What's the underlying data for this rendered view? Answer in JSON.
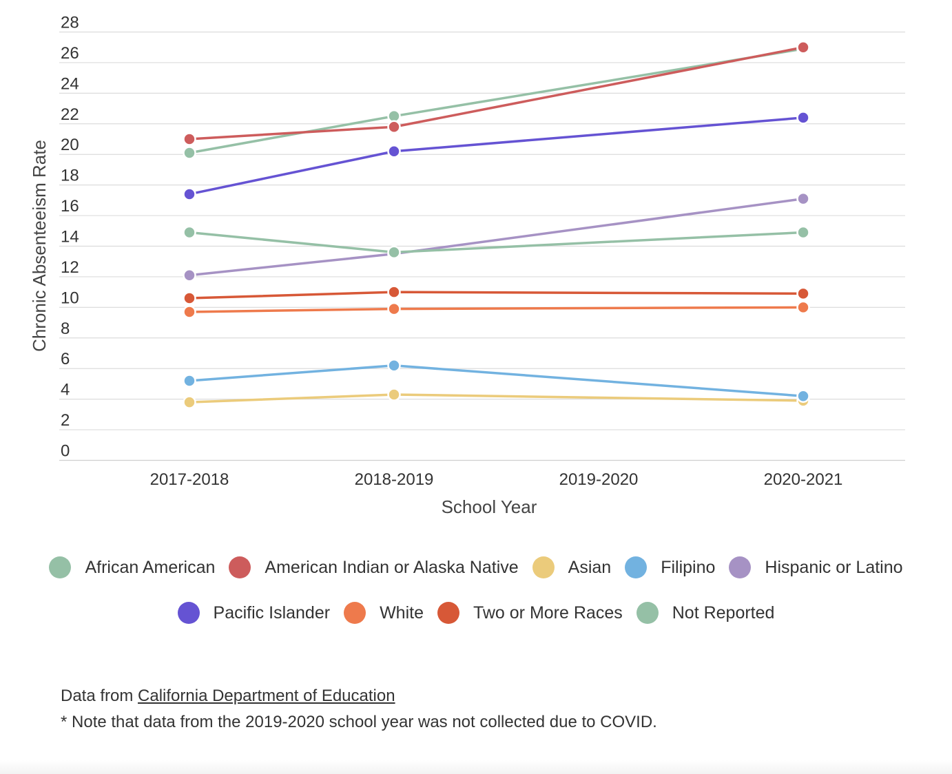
{
  "chart_data": {
    "type": "line",
    "title": "",
    "xlabel": "School Year",
    "ylabel": "Chronic Absenteeism Rate",
    "ylim": [
      0,
      28
    ],
    "yticks": [
      0,
      2,
      4,
      6,
      8,
      10,
      12,
      14,
      16,
      18,
      20,
      22,
      24,
      26,
      28
    ],
    "grid": true,
    "legend_position": "bottom",
    "categories": [
      "2017-2018",
      "2018-2019",
      "2019-2020",
      "2020-2021"
    ],
    "series": [
      {
        "name": "African American",
        "color": "#95c0a6",
        "values": [
          20.1,
          22.5,
          null,
          26.9
        ]
      },
      {
        "name": "American Indian or Alaska Native",
        "color": "#cd5c5c",
        "values": [
          21.0,
          21.8,
          null,
          27.0
        ]
      },
      {
        "name": "Asian",
        "color": "#ebcb7b",
        "values": [
          3.8,
          4.3,
          null,
          3.9
        ]
      },
      {
        "name": "Filipino",
        "color": "#72b2e0",
        "values": [
          5.2,
          6.2,
          null,
          4.2
        ]
      },
      {
        "name": "Hispanic or Latino",
        "color": "#a692c4",
        "values": [
          12.1,
          13.5,
          null,
          17.1
        ]
      },
      {
        "name": "Pacific Islander",
        "color": "#6553d3",
        "values": [
          17.4,
          20.2,
          null,
          22.4
        ]
      },
      {
        "name": "White",
        "color": "#ee7a4c",
        "values": [
          9.7,
          9.9,
          null,
          10.0
        ]
      },
      {
        "name": "Two or More Races",
        "color": "#d75837",
        "values": [
          10.6,
          11.0,
          null,
          10.9
        ]
      },
      {
        "name": "Not Reported",
        "color": "#95c0a6",
        "values": [
          14.9,
          13.6,
          null,
          14.9
        ]
      }
    ]
  },
  "legend": {
    "row1": [
      "African American",
      "American Indian or Alaska Native",
      "Asian",
      "Filipino",
      "Hispanic or Latino"
    ],
    "row2": [
      "Pacific Islander",
      "White",
      "Two or More Races",
      "Not Reported"
    ]
  },
  "footer": {
    "source_prefix": "Data from ",
    "source_link": "California Department of Education ",
    "note": "* Note that data from the 2019-2020 school year was not collected due to COVID."
  }
}
